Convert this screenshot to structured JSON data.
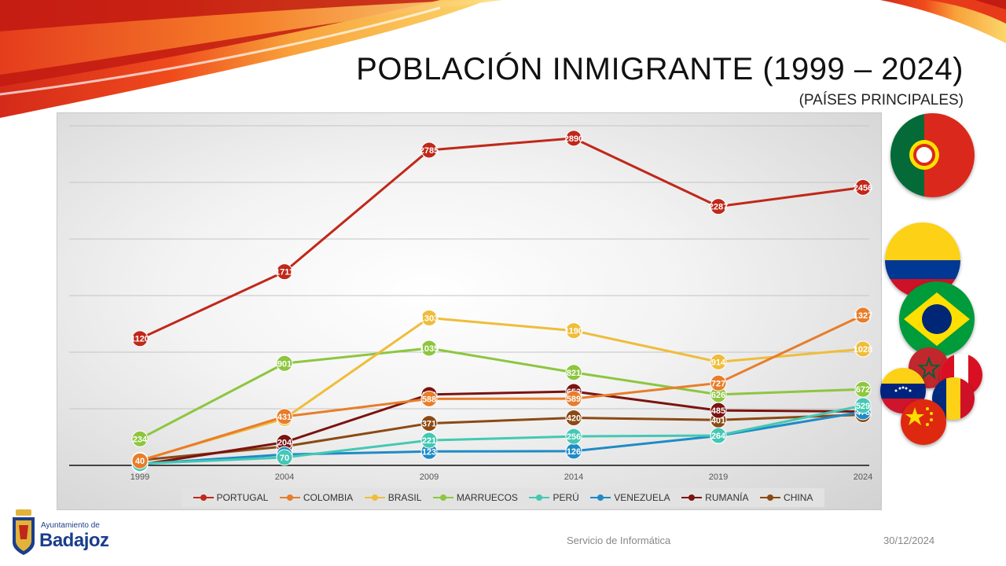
{
  "slide": {
    "title": "POBLACIÓN INMIGRANTE (1999 – 2024)",
    "subtitle": "(PAÍSES PRINCIPALES)",
    "footer_center": "Servicio de Informática",
    "footer_right": "30/12/2024",
    "logo_line1": "Ayuntamiento de",
    "logo_line2": "Badajoz",
    "flags": [
      "Portugal",
      "Colombia",
      "Brasil",
      "Marruecos",
      "Perú",
      "Venezuela",
      "Rumanía",
      "China"
    ]
  },
  "chart_data": {
    "type": "line",
    "x": [
      "1999",
      "2004",
      "2009",
      "2014",
      "2019",
      "2024"
    ],
    "ylim": [
      0,
      3000
    ],
    "grid": true,
    "legend_position": "bottom",
    "series": [
      {
        "name": "PORTUGAL",
        "color": "#c0281a",
        "values": [
          1120,
          1711,
          2785,
          2890,
          2287,
          2456
        ]
      },
      {
        "name": "COLOMBIA",
        "color": "#e87d2a",
        "values": [
          40,
          431,
          588,
          589,
          727,
          1327
        ]
      },
      {
        "name": "BRASIL",
        "color": "#efbd3a",
        "values": [
          45,
          414,
          1303,
          1190,
          914,
          1028
        ]
      },
      {
        "name": "MARRUECOS",
        "color": "#8dc63f",
        "values": [
          234,
          901,
          1035,
          821,
          626,
          672
        ]
      },
      {
        "name": "PERÚ",
        "color": "#44c8b4",
        "values": [
          15,
          70,
          221,
          256,
          264,
          529
        ]
      },
      {
        "name": "VENEZUELA",
        "color": "#1e8bc6",
        "values": [
          12,
          96,
          123,
          126,
          261,
          473
        ]
      },
      {
        "name": "RUMANÍA",
        "color": "#7b1310",
        "values": [
          5,
          204,
          626,
          653,
          485,
          476
        ]
      },
      {
        "name": "CHINA",
        "color": "#8b4a14",
        "values": [
          46,
          167,
          371,
          420,
          401,
          448
        ]
      }
    ]
  }
}
